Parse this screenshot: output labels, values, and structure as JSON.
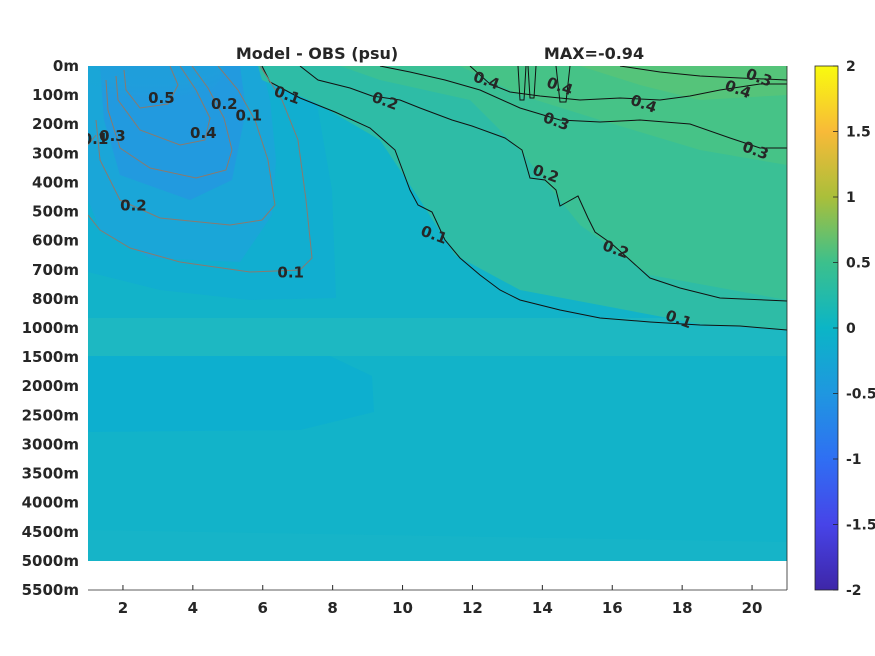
{
  "chart_data": {
    "type": "heatmap",
    "title_left": "Model - OBS (psu)",
    "title_right": "MAX=-0.94",
    "xlabel": "",
    "ylabel": "",
    "x_ticks": [
      2,
      4,
      6,
      8,
      10,
      12,
      14,
      16,
      18,
      20
    ],
    "xlim": [
      1,
      21
    ],
    "y_ticks": [
      "0m",
      "100m",
      "200m",
      "300m",
      "400m",
      "500m",
      "600m",
      "700m",
      "800m",
      "1000m",
      "1500m",
      "2000m",
      "2500m",
      "3000m",
      "3500m",
      "4000m",
      "4500m",
      "5000m",
      "5500m"
    ],
    "colorbar": {
      "range": [
        -2,
        2
      ],
      "ticks": [
        "2",
        "1.5",
        "1",
        "0.5",
        "0",
        "-0.5",
        "-1",
        "-1.5",
        "-2"
      ],
      "colormap": "parula"
    },
    "regions": [
      {
        "x": [
          1,
          21
        ],
        "depth_level": [
          0,
          17
        ],
        "value": 0.0
      },
      {
        "x": [
          1,
          21
        ],
        "depth_level": [
          9.5,
          11
        ],
        "value": 0.05
      },
      {
        "x": [
          1,
          9
        ],
        "depth_level": [
          10.5,
          12.5
        ],
        "value": -0.05
      },
      {
        "x": [
          1,
          6.5
        ],
        "depth_level": [
          0,
          6
        ],
        "value": -0.25
      },
      {
        "x": [
          1.7,
          5
        ],
        "depth_level": [
          0,
          3
        ],
        "value": -0.4
      },
      {
        "x": [
          2,
          4
        ],
        "depth_level": [
          0,
          0.6
        ],
        "value": -0.6
      },
      {
        "x": [
          5.5,
          21
        ],
        "depth_level": [
          0,
          8.5
        ],
        "value": 0.25
      },
      {
        "x": [
          13,
          21
        ],
        "depth_level": [
          0,
          3
        ],
        "value": 0.4
      }
    ],
    "contour_labels": [
      {
        "text": "0.1",
        "x": 6.7,
        "depth_level": 1,
        "sign": "positive"
      },
      {
        "text": "0.2",
        "x": 9.5,
        "depth_level": 1.2,
        "sign": "positive"
      },
      {
        "text": "0.4",
        "x": 12.4,
        "depth_level": 0.5,
        "sign": "positive"
      },
      {
        "text": "0.4",
        "x": 14.5,
        "depth_level": 0.7,
        "sign": "positive"
      },
      {
        "text": "0.4",
        "x": 16.9,
        "depth_level": 1.3,
        "sign": "positive"
      },
      {
        "text": "0.4",
        "x": 19.6,
        "depth_level": 0.8,
        "sign": "positive"
      },
      {
        "text": "0.3",
        "x": 20.2,
        "depth_level": 0.4,
        "sign": "positive"
      },
      {
        "text": "0.3",
        "x": 14.4,
        "depth_level": 1.9,
        "sign": "positive"
      },
      {
        "text": "0.3",
        "x": 20.1,
        "depth_level": 2.9,
        "sign": "positive"
      },
      {
        "text": "0.2",
        "x": 14.1,
        "depth_level": 3.7,
        "sign": "positive"
      },
      {
        "text": "0.2",
        "x": 16.1,
        "depth_level": 6.3,
        "sign": "positive"
      },
      {
        "text": "0.1",
        "x": 10.9,
        "depth_level": 5.8,
        "sign": "positive"
      },
      {
        "text": "0.1",
        "x": 17.9,
        "depth_level": 8.7,
        "sign": "positive"
      },
      {
        "text": "0.5",
        "x": 3.1,
        "depth_level": 1.1,
        "sign": "negative"
      },
      {
        "text": "0.2",
        "x": 4.9,
        "depth_level": 1.3,
        "sign": "negative"
      },
      {
        "text": "0.1",
        "x": 5.6,
        "depth_level": 1.7,
        "sign": "negative"
      },
      {
        "text": "0.4",
        "x": 4.3,
        "depth_level": 2.3,
        "sign": "negative"
      },
      {
        "text": "0.3",
        "x": 1.7,
        "depth_level": 2.4,
        "sign": "negative"
      },
      {
        "text": "0.1",
        "x": 1.2,
        "depth_level": 2.5,
        "sign": "negative"
      },
      {
        "text": "0.2",
        "x": 2.3,
        "depth_level": 4.8,
        "sign": "negative"
      },
      {
        "text": "0.1",
        "x": 6.8,
        "depth_level": 7.1,
        "sign": "negative"
      }
    ]
  }
}
